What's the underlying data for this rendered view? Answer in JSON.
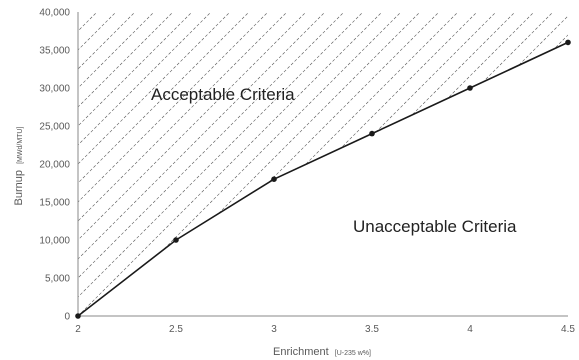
{
  "chart_data": {
    "type": "line",
    "x": [
      2,
      2.5,
      3,
      3.5,
      4,
      4.5
    ],
    "series": [
      {
        "values": [
          0,
          10000,
          18000,
          24000,
          30000,
          36000
        ]
      }
    ],
    "xlim": [
      2,
      4.5
    ],
    "ylim": [
      0,
      40000
    ],
    "x_ticks": [
      "2",
      "2.5",
      "3",
      "3.5",
      "4",
      "4.5"
    ],
    "y_ticks": [
      "0",
      "5,000",
      "10,000",
      "15,000",
      "20,000",
      "25,000",
      "30,000",
      "35,000",
      "40,000"
    ],
    "xlabel": "Enrichment",
    "xlabel_unit": "[U-235 w%]",
    "ylabel": "Burnup",
    "ylabel_unit": "[MWd/MTU]",
    "annotations": {
      "upper": "Acceptable Criteria",
      "lower": "Unacceptable Criteria"
    },
    "grid": false,
    "hatched_region": "above line",
    "line_color": "#1a1a1a"
  }
}
